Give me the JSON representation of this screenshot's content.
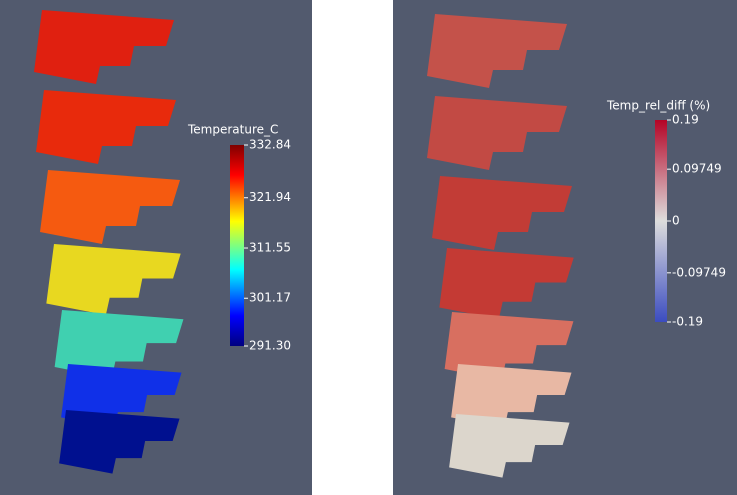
{
  "panels": [
    {
      "colorbar": {
        "title": "Temperature_C",
        "ticks": [
          332.84,
          321.94,
          311.55,
          301.17,
          {
            "value": 291.3,
            "label": "291.30"
          }
        ]
      }
    },
    {
      "colorbar": {
        "title": "Temp_rel_diff (%)",
        "ticks": [
          0.19,
          0.09749,
          0,
          -0.09749,
          -0.19
        ]
      }
    }
  ]
}
